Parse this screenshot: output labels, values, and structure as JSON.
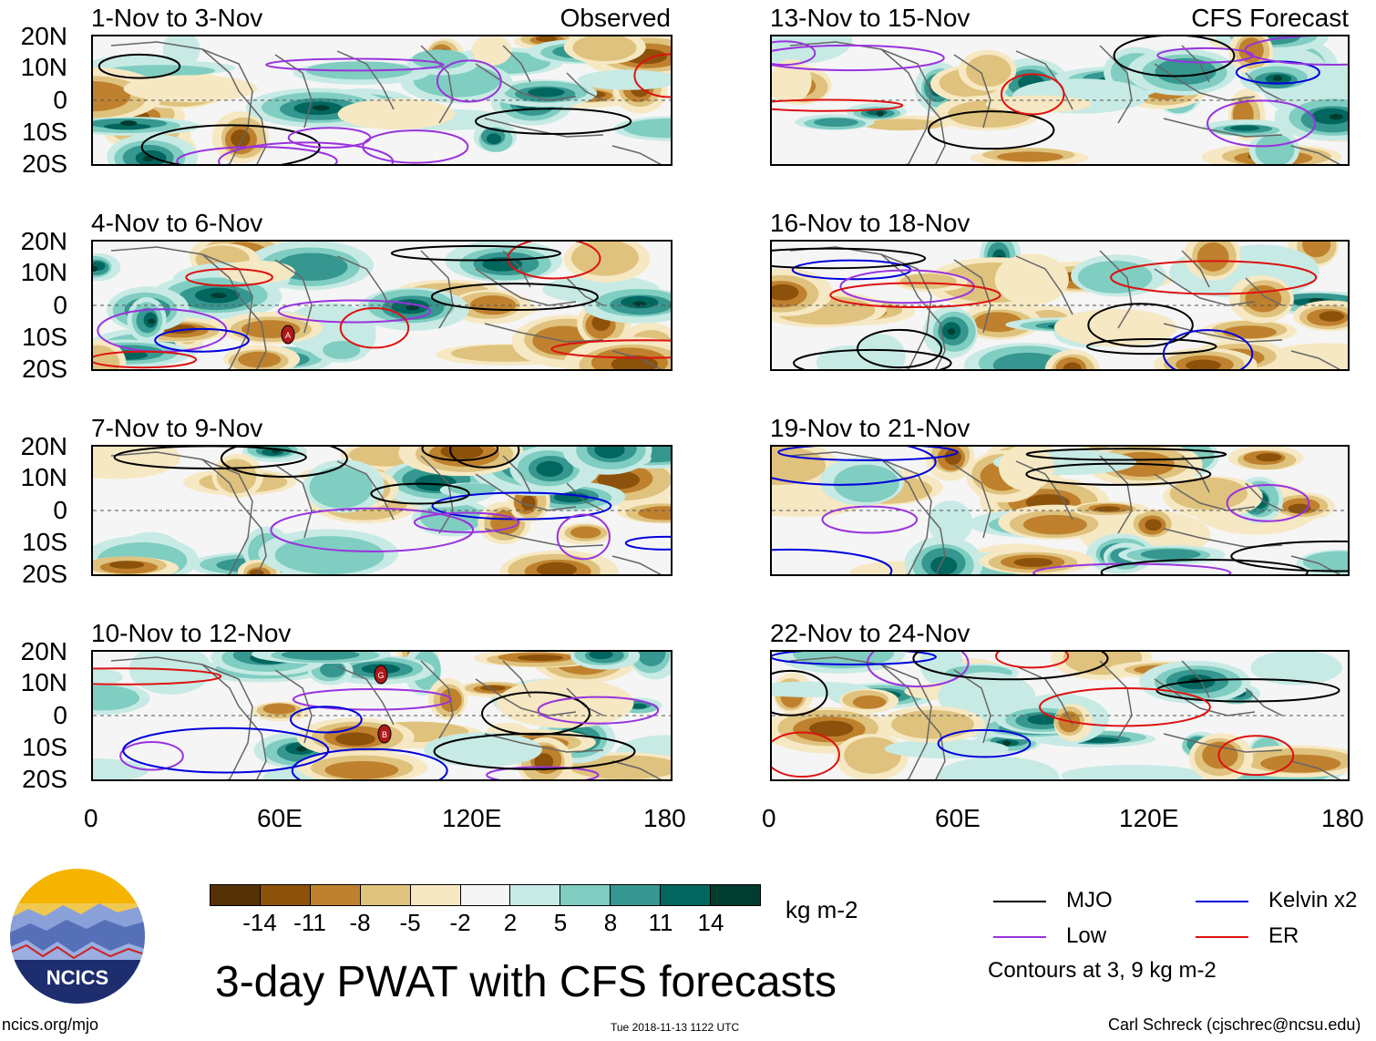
{
  "panels": [
    {
      "period": "1-Nov to 3-Nov",
      "label": "Observed"
    },
    {
      "period": "4-Nov to 6-Nov",
      "label": ""
    },
    {
      "period": "7-Nov to 9-Nov",
      "label": ""
    },
    {
      "period": "10-Nov to 12-Nov",
      "label": ""
    },
    {
      "period": "13-Nov to 15-Nov",
      "label": "CFS Forecast"
    },
    {
      "period": "16-Nov to 18-Nov",
      "label": ""
    },
    {
      "period": "19-Nov to 21-Nov",
      "label": ""
    },
    {
      "period": "22-Nov to 24-Nov",
      "label": ""
    }
  ],
  "lat_labels": [
    "20N",
    "10N",
    "0",
    "10S",
    "20S"
  ],
  "lon_labels": [
    "0",
    "60E",
    "120E",
    "180"
  ],
  "storm_markers": [
    "A",
    "G",
    "B"
  ],
  "colorbar": {
    "colors": [
      "#543005",
      "#8c510a",
      "#bf812d",
      "#dfc27d",
      "#f6e8c3",
      "#f5f5f5",
      "#c7eae5",
      "#80cdc1",
      "#35978f",
      "#01665e",
      "#003c30"
    ],
    "ticks": [
      "-14",
      "-11",
      "-8",
      "-5",
      "-2",
      "2",
      "5",
      "8",
      "11",
      "14"
    ],
    "units": "kg m-2"
  },
  "title": "3-day PWAT with CFS forecasts",
  "legend": {
    "items": [
      {
        "label": "MJO",
        "color": "#000000"
      },
      {
        "label": "Kelvin x2",
        "color": "#0000dd"
      },
      {
        "label": "Low",
        "color": "#9933dd"
      },
      {
        "label": "ER",
        "color": "#dd1111"
      }
    ],
    "note": "Contours at 3, 9 kg m-2"
  },
  "logo": {
    "text": "NCICS"
  },
  "footer": {
    "url": "ncics.org/mjo",
    "timestamp": "Tue 2018-11-13 1122 UTC",
    "credit": "Carl Schreck (cjschrec@ncsu.edu)"
  }
}
